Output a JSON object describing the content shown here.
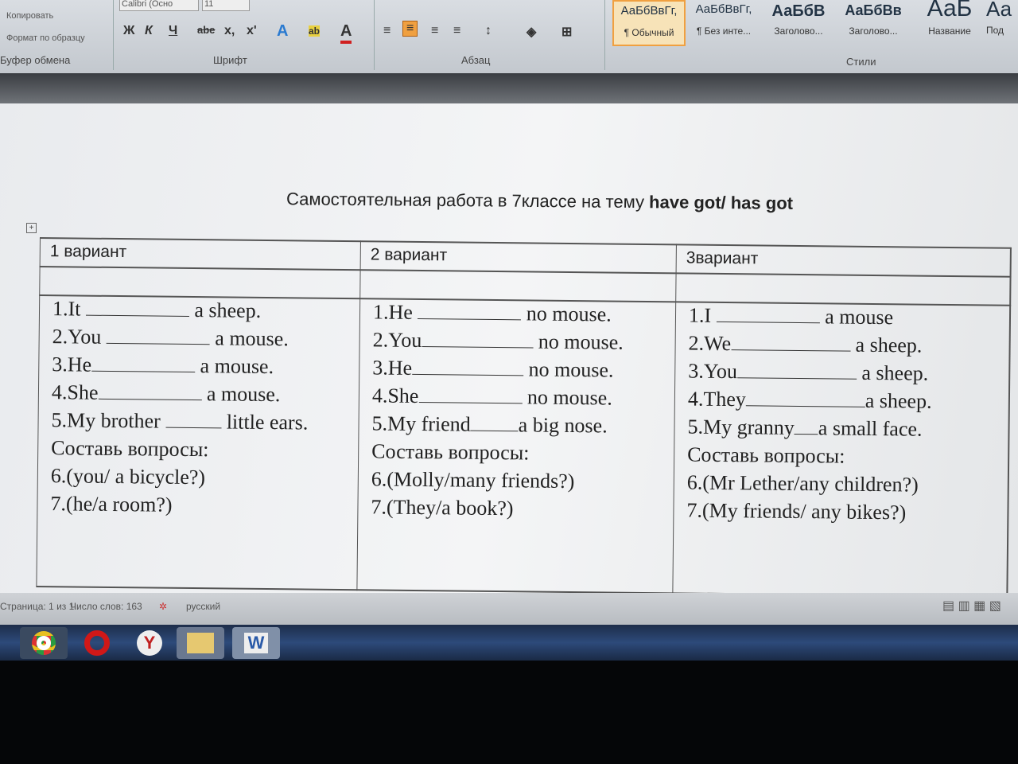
{
  "ribbon": {
    "clipboard": {
      "copy": "Копировать",
      "format_painter": "Формат по образцу",
      "label": "Буфер обмена"
    },
    "font": {
      "name": "Calibri (Осно",
      "size": "11",
      "label": "Шрифт",
      "bold": "Ж",
      "italic": "К",
      "underline": "Ч",
      "strike": "abe",
      "sub": "x,",
      "sup": "x'",
      "color": "A"
    },
    "paragraph": {
      "label": "Абзац"
    },
    "styles": {
      "label": "Стили",
      "items": [
        {
          "sample": "АаБбВвГг,",
          "name": "¶ Обычный",
          "selected": true
        },
        {
          "sample": "АаБбВвГг,",
          "name": "¶ Без инте..."
        },
        {
          "sample": "АаБбВ",
          "name": "Заголово..."
        },
        {
          "sample": "АаБбВв",
          "name": "Заголово..."
        },
        {
          "sample": "АаБ",
          "name": "Название"
        },
        {
          "sample": "Аа",
          "name": "Под"
        }
      ]
    },
    "accent": "#f0a040"
  },
  "document": {
    "title_normal": "Самостоятельная работа в 7классе на тему ",
    "title_bold": "have got/ has got",
    "columns": [
      {
        "header": "1 вариант",
        "items": [
          {
            "pre": "1.It",
            "post": "a sheep."
          },
          {
            "pre": "2.You",
            "post": "a mouse."
          },
          {
            "pre": "3.He",
            "post": "a mouse."
          },
          {
            "pre": "4.She",
            "post": "a mouse."
          },
          {
            "pre": "5.My brother",
            "post": "little ears."
          }
        ],
        "questions_label": "Составь вопросы:",
        "questions": [
          "6.(you/ a bicycle?)",
          "7.(he/a room?)"
        ]
      },
      {
        "header": "2 вариант",
        "items": [
          {
            "pre": "1.He",
            "post": "no mouse."
          },
          {
            "pre": "2.You",
            "post": "no mouse."
          },
          {
            "pre": "3.He",
            "post": "no mouse."
          },
          {
            "pre": "4.She",
            "post": "no mouse."
          },
          {
            "pre": "5.My friend",
            "post": "a big nose."
          }
        ],
        "questions_label": "Составь вопросы:",
        "questions": [
          "6.(Molly/many friends?)",
          "7.(They/a book?)"
        ]
      },
      {
        "header": "3вариант",
        "items": [
          {
            "pre": "1.I",
            "post": "a mouse"
          },
          {
            "pre": "2.We",
            "post": "a sheep."
          },
          {
            "pre": "3.You",
            "post": "a sheep."
          },
          {
            "pre": "4.They",
            "post": "a sheep."
          },
          {
            "pre": "5.My granny",
            "post": "a small face."
          }
        ],
        "questions_label": "Составь вопросы:",
        "questions": [
          "6.(Mr Lether/any children?)",
          "7.(My friends/ any bikes?)"
        ]
      }
    ]
  },
  "status": {
    "page": "Страница: 1 из 1",
    "words": "Число слов: 163",
    "language": "русский"
  },
  "taskbar": [
    "chrome",
    "opera",
    "yandex",
    "file-explorer",
    "word"
  ]
}
